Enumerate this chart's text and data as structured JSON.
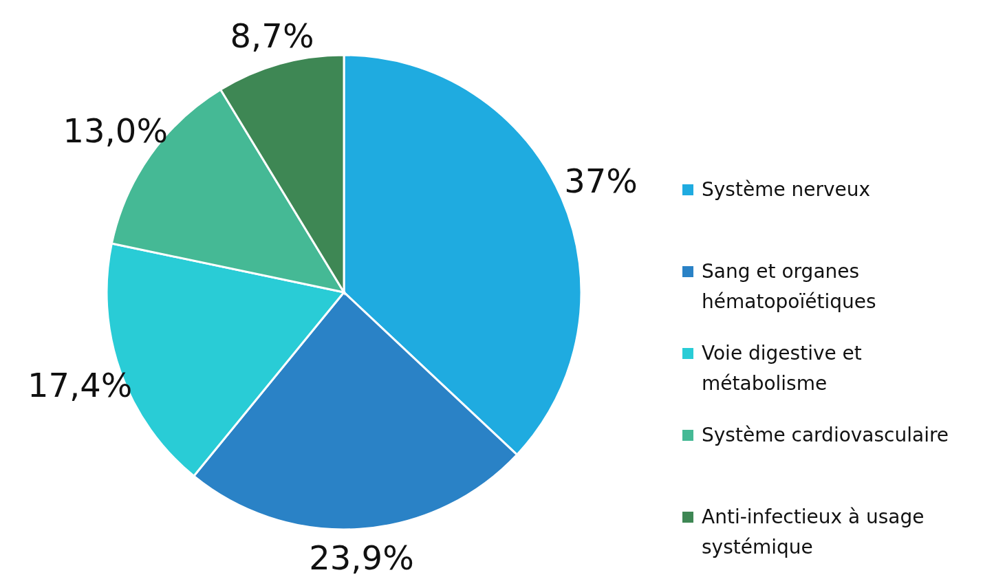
{
  "chart_data": {
    "type": "pie",
    "categories": [
      "Système nerveux",
      "Sang et organes hématopoïétiques",
      "Voie digestive et métabolisme",
      "Système cardiovasculaire",
      "Anti-infectieux à usage systémique"
    ],
    "values": [
      37,
      23.9,
      17.4,
      13.0,
      8.7
    ],
    "colors": [
      "#1fabe0",
      "#2a82c6",
      "#29ccd6",
      "#45b995",
      "#3e8754"
    ],
    "value_labels": [
      "37%",
      "23,9%",
      "17,4%",
      "13,0%",
      "8,7%"
    ],
    "legend": "right"
  }
}
